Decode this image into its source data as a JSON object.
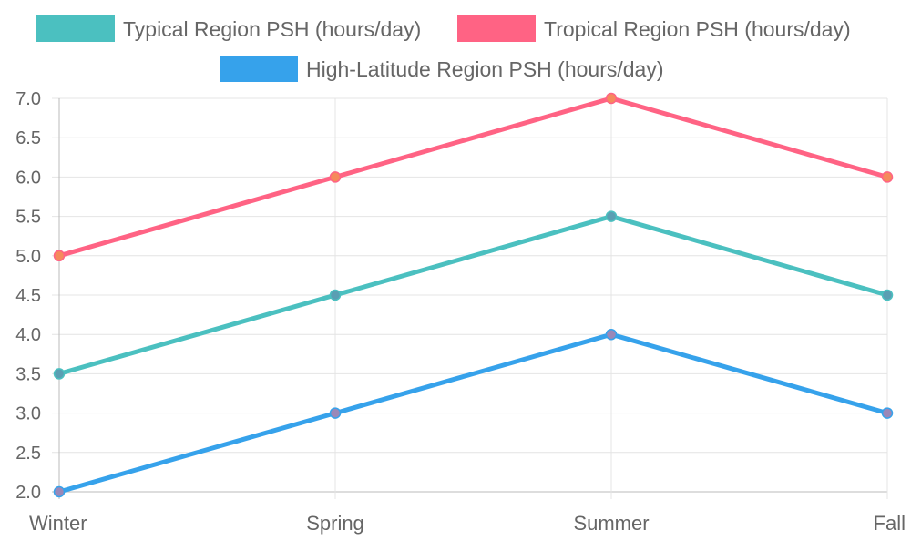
{
  "chart_data": {
    "type": "line",
    "title": "",
    "xlabel": "",
    "ylabel": "",
    "categories": [
      "Winter",
      "Spring",
      "Summer",
      "Fall"
    ],
    "ylim": [
      2.0,
      7.0
    ],
    "yticks": [
      "2.0",
      "2.5",
      "3.0",
      "3.5",
      "4.0",
      "4.5",
      "5.0",
      "5.5",
      "6.0",
      "6.5",
      "7.0"
    ],
    "grid": true,
    "legend_position": "top",
    "series": [
      {
        "name": "Typical Region PSH (hours/day)",
        "values": [
          3.5,
          4.5,
          5.5,
          4.5
        ],
        "color": "#4bc0c0",
        "point_color": "#5a9fb3"
      },
      {
        "name": "Tropical Region PSH (hours/day)",
        "values": [
          5.0,
          6.0,
          7.0,
          6.0
        ],
        "color": "#ff6384",
        "point_color": "#f58a5c"
      },
      {
        "name": "High-Latitude Region PSH (hours/day)",
        "values": [
          2.0,
          3.0,
          4.0,
          3.0
        ],
        "color": "#36a2eb",
        "point_color": "#9a88b8"
      }
    ]
  }
}
